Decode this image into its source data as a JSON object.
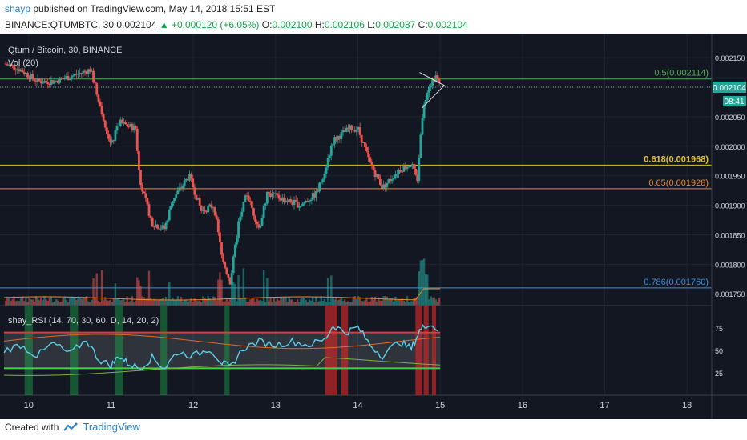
{
  "header": {
    "user": "shayp",
    "published": "published on TradingView.com, May 14, 2018 15:51 EST",
    "symbol": "BINANCE:QTUMBTC, 30",
    "last": "0.002104",
    "change": "▲ +0.000120 (+6.05%)",
    "o_label": "O:",
    "o": "0.002100",
    "h_label": "H:",
    "h": "0.002106",
    "l_label": "L:",
    "l": "0.002087",
    "c_label": "C:",
    "c": "0.002104"
  },
  "footer": {
    "created": "Created with",
    "brand": "TradingView"
  },
  "colors": {
    "bg": "#131722",
    "up": "#26a69a",
    "down": "#ef5350",
    "grid": "#1e2432",
    "fib05": "#4caf50",
    "fib618": "#e6c229",
    "fib65": "#ef8a2b",
    "fib786": "#3b8ed8",
    "rsi": "#5ad0e8",
    "price_tag": "#2aa198"
  },
  "chart_data": {
    "type": "candlestick",
    "title": "Qtum / Bitcoin, 30, BINANCE",
    "volume_label": "Vol (20)",
    "y_ticks": [
      "0.002150",
      "0.002100",
      "0.002050",
      "0.002000",
      "0.001950",
      "0.001900",
      "0.001850",
      "0.001800",
      "0.001750"
    ],
    "ylim": [
      0.00173,
      0.00218
    ],
    "x_ticks": [
      "10",
      "11",
      "12",
      "13",
      "14",
      "15",
      "16",
      "17",
      "18"
    ],
    "xlim": [
      9.7,
      18.3
    ],
    "last_price": "0.002104",
    "countdown": "08:41",
    "fib_levels": [
      {
        "label": "0.5(0.002114)",
        "value": 0.002114
      },
      {
        "label": "0.618(0.001968)",
        "value": 0.001968
      },
      {
        "label": "0.65(0.001928)",
        "value": 0.001928
      },
      {
        "label": "0.786(0.001760)",
        "value": 0.00176
      }
    ],
    "price_path": [
      [
        9.7,
        0.00214
      ],
      [
        9.9,
        0.00213
      ],
      [
        10.1,
        0.00211
      ],
      [
        10.3,
        0.00211
      ],
      [
        10.55,
        0.00212
      ],
      [
        10.75,
        0.00213
      ],
      [
        10.85,
        0.00208
      ],
      [
        11.0,
        0.002
      ],
      [
        11.1,
        0.00204
      ],
      [
        11.3,
        0.00203
      ],
      [
        11.35,
        0.00194
      ],
      [
        11.5,
        0.00187
      ],
      [
        11.65,
        0.00186
      ],
      [
        11.75,
        0.00191
      ],
      [
        11.95,
        0.00195
      ],
      [
        12.1,
        0.00189
      ],
      [
        12.25,
        0.0019
      ],
      [
        12.35,
        0.00181
      ],
      [
        12.45,
        0.00177
      ],
      [
        12.55,
        0.00187
      ],
      [
        12.65,
        0.00192
      ],
      [
        12.8,
        0.00186
      ],
      [
        12.9,
        0.00192
      ],
      [
        13.1,
        0.00191
      ],
      [
        13.3,
        0.0019
      ],
      [
        13.5,
        0.00192
      ],
      [
        13.6,
        0.00196
      ],
      [
        13.7,
        0.00201
      ],
      [
        13.9,
        0.00203
      ],
      [
        14.0,
        0.00203
      ],
      [
        14.15,
        0.00197
      ],
      [
        14.3,
        0.00193
      ],
      [
        14.5,
        0.00196
      ],
      [
        14.65,
        0.00197
      ],
      [
        14.72,
        0.00194
      ],
      [
        14.78,
        0.00205
      ],
      [
        14.85,
        0.0021
      ],
      [
        14.95,
        0.00212
      ],
      [
        15.0,
        0.0021
      ]
    ],
    "rsi_indicator": {
      "label": "shay_RSI (14, 70, 30, 60, D, 14, 20, 2)",
      "y_ticks": [
        "75",
        "50",
        "25"
      ],
      "ylim": [
        0,
        100
      ],
      "upper": 70,
      "lower": 30,
      "path": [
        [
          9.7,
          50
        ],
        [
          9.9,
          56
        ],
        [
          10.1,
          44
        ],
        [
          10.3,
          58
        ],
        [
          10.5,
          46
        ],
        [
          10.7,
          62
        ],
        [
          10.85,
          40
        ],
        [
          11.0,
          33
        ],
        [
          11.1,
          44
        ],
        [
          11.2,
          36
        ],
        [
          11.35,
          30
        ],
        [
          11.5,
          42
        ],
        [
          11.65,
          30
        ],
        [
          11.8,
          48
        ],
        [
          12.0,
          44
        ],
        [
          12.2,
          52
        ],
        [
          12.35,
          36
        ],
        [
          12.45,
          31
        ],
        [
          12.6,
          52
        ],
        [
          12.8,
          60
        ],
        [
          13.0,
          56
        ],
        [
          13.2,
          60
        ],
        [
          13.4,
          56
        ],
        [
          13.6,
          62
        ],
        [
          13.7,
          78
        ],
        [
          13.85,
          70
        ],
        [
          14.0,
          76
        ],
        [
          14.15,
          56
        ],
        [
          14.3,
          44
        ],
        [
          14.5,
          60
        ],
        [
          14.65,
          52
        ],
        [
          14.75,
          72
        ],
        [
          14.85,
          80
        ],
        [
          15.0,
          72
        ]
      ],
      "green_zones": [
        [
          9.95,
          10.05
        ],
        [
          10.5,
          10.6
        ],
        [
          11.05,
          11.15
        ],
        [
          11.6,
          11.68
        ],
        [
          12.38,
          12.44
        ]
      ],
      "red_zones": [
        [
          13.6,
          13.75
        ],
        [
          13.8,
          13.88
        ],
        [
          14.7,
          14.78
        ],
        [
          14.8,
          14.86
        ],
        [
          14.9,
          14.95
        ]
      ]
    }
  }
}
